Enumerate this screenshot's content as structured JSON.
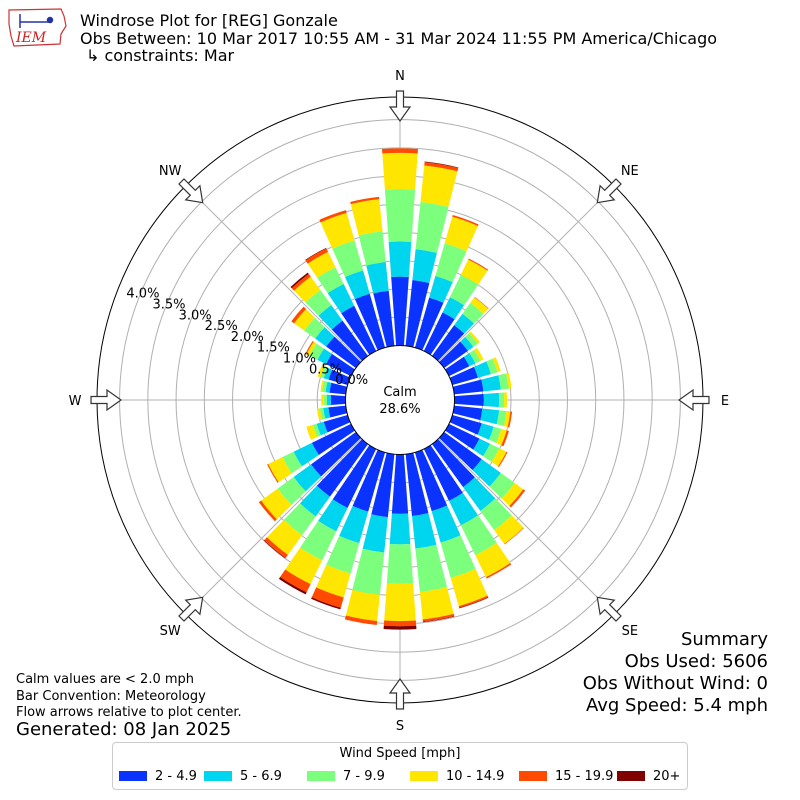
{
  "header": {
    "logo_text": "IEM",
    "title": "Windrose Plot for [REG] Gonzale",
    "subtitle": "Obs Between: 10 Mar 2017 10:55 AM - 31 Mar 2024 11:55 PM America/Chicago",
    "constraints": "↳ constraints: Mar"
  },
  "notes": {
    "calm": "Calm values are < 2.0 mph",
    "convention": "Bar Convention: Meteorology",
    "flow": "Flow arrows relative to plot center.",
    "generated": "Generated: 08 Jan 2025"
  },
  "summary": {
    "title": "Summary",
    "obs_used": "Obs Used: 5606",
    "obs_without_wind": "Obs Without Wind: 0",
    "avg_speed": "Avg Speed: 5.4 mph"
  },
  "legend": {
    "title": "Wind Speed [mph]",
    "items": [
      {
        "label": "2 - 4.9",
        "color": "#0b33ff"
      },
      {
        "label": "5 - 6.9",
        "color": "#00d5f0"
      },
      {
        "label": "7 - 9.9",
        "color": "#7cff7c"
      },
      {
        "label": "10 - 14.9",
        "color": "#ffe600"
      },
      {
        "label": "15 - 19.9",
        "color": "#ff4a00"
      },
      {
        "label": "20+",
        "color": "#800000"
      }
    ]
  },
  "chart_data": {
    "type": "windrose",
    "calm_label": "Calm",
    "calm_value": "28.6%",
    "radial_tick_labels": [
      "0.0%",
      "0.5%",
      "1.0%",
      "1.5%",
      "2.0%",
      "2.5%",
      "3.0%",
      "3.5%",
      "4.0%"
    ],
    "radial_max_percent": 4.4,
    "calm_hole_fraction": 0.18,
    "directions": [
      {
        "label": "N",
        "angle": 0
      },
      {
        "label": "NE",
        "angle": 45
      },
      {
        "label": "E",
        "angle": 90
      },
      {
        "label": "SE",
        "angle": 135
      },
      {
        "label": "S",
        "angle": 180
      },
      {
        "label": "SW",
        "angle": 225
      },
      {
        "label": "W",
        "angle": 270
      },
      {
        "label": "NW",
        "angle": 315
      }
    ],
    "speed_bins": [
      "2 - 4.9",
      "5 - 6.9",
      "7 - 9.9",
      "10 - 14.9",
      "15 - 19.9",
      "20+"
    ],
    "sectors": [
      {
        "direction": 0,
        "values": [
          1.22,
          0.62,
          0.93,
          0.64,
          0.08,
          0.0
        ]
      },
      {
        "direction": 10,
        "values": [
          1.17,
          0.55,
          0.84,
          0.65,
          0.06,
          0.01
        ]
      },
      {
        "direction": 20,
        "values": [
          0.92,
          0.4,
          0.6,
          0.49,
          0.03,
          0.0
        ]
      },
      {
        "direction": 30,
        "values": [
          0.76,
          0.3,
          0.44,
          0.3,
          0.02,
          0.0
        ]
      },
      {
        "direction": 40,
        "values": [
          0.67,
          0.25,
          0.24,
          0.12,
          0.01,
          0.0
        ]
      },
      {
        "direction": 50,
        "values": [
          0.52,
          0.12,
          0.1,
          0.04,
          0.0,
          0.0
        ]
      },
      {
        "direction": 60,
        "values": [
          0.4,
          0.12,
          0.1,
          0.06,
          0.0,
          0.0
        ]
      },
      {
        "direction": 70,
        "values": [
          0.47,
          0.24,
          0.12,
          0.06,
          0.0,
          0.0
        ]
      },
      {
        "direction": 80,
        "values": [
          0.52,
          0.31,
          0.14,
          0.05,
          0.0,
          0.0
        ]
      },
      {
        "direction": 90,
        "values": [
          0.52,
          0.27,
          0.09,
          0.05,
          0.0,
          0.0
        ]
      },
      {
        "direction": 100,
        "values": [
          0.5,
          0.3,
          0.13,
          0.07,
          0.03,
          0.0
        ]
      },
      {
        "direction": 110,
        "values": [
          0.54,
          0.22,
          0.14,
          0.1,
          0.04,
          0.0
        ]
      },
      {
        "direction": 120,
        "values": [
          0.6,
          0.21,
          0.18,
          0.14,
          0.02,
          0.0
        ]
      },
      {
        "direction": 130,
        "values": [
          0.82,
          0.42,
          0.3,
          0.19,
          0.04,
          0.0
        ]
      },
      {
        "direction": 140,
        "values": [
          0.94,
          0.52,
          0.42,
          0.3,
          0.01,
          0.0
        ]
      },
      {
        "direction": 150,
        "values": [
          1.02,
          0.48,
          0.59,
          0.43,
          0.03,
          0.0
        ]
      },
      {
        "direction": 160,
        "values": [
          1.08,
          0.58,
          0.65,
          0.52,
          0.03,
          0.01
        ]
      },
      {
        "direction": 170,
        "values": [
          1.1,
          0.58,
          0.77,
          0.49,
          0.04,
          0.01
        ]
      },
      {
        "direction": 180,
        "values": [
          1.05,
          0.54,
          0.7,
          0.66,
          0.09,
          0.06
        ]
      },
      {
        "direction": 190,
        "values": [
          1.12,
          0.63,
          0.75,
          0.47,
          0.07,
          0.0
        ]
      },
      {
        "direction": 200,
        "values": [
          1.09,
          0.58,
          0.56,
          0.44,
          0.19,
          0.03
        ]
      },
      {
        "direction": 210,
        "values": [
          1.16,
          0.46,
          0.57,
          0.47,
          0.16,
          0.04
        ]
      },
      {
        "direction": 220,
        "values": [
          1.15,
          0.43,
          0.41,
          0.43,
          0.07,
          0.01
        ]
      },
      {
        "direction": 230,
        "values": [
          0.98,
          0.38,
          0.35,
          0.36,
          0.05,
          0.0
        ]
      },
      {
        "direction": 240,
        "values": [
          0.77,
          0.36,
          0.22,
          0.28,
          0.02,
          0.0
        ]
      },
      {
        "direction": 250,
        "values": [
          0.44,
          0.13,
          0.07,
          0.12,
          0.0,
          0.0
        ]
      },
      {
        "direction": 260,
        "values": [
          0.31,
          0.09,
          0.06,
          0.05,
          0.0,
          0.0
        ]
      },
      {
        "direction": 270,
        "values": [
          0.26,
          0.07,
          0.05,
          0.05,
          0.0,
          0.0
        ]
      },
      {
        "direction": 280,
        "values": [
          0.29,
          0.07,
          0.06,
          0.03,
          0.0,
          0.0
        ]
      },
      {
        "direction": 290,
        "values": [
          0.35,
          0.09,
          0.06,
          0.05,
          0.0,
          0.0
        ]
      },
      {
        "direction": 300,
        "values": [
          0.49,
          0.17,
          0.16,
          0.06,
          0.02,
          0.0
        ]
      },
      {
        "direction": 310,
        "values": [
          0.65,
          0.24,
          0.24,
          0.22,
          0.06,
          0.0
        ]
      },
      {
        "direction": 320,
        "values": [
          0.77,
          0.34,
          0.33,
          0.29,
          0.06,
          0.03
        ]
      },
      {
        "direction": 330,
        "values": [
          0.89,
          0.43,
          0.33,
          0.3,
          0.07,
          0.01
        ]
      },
      {
        "direction": 340,
        "values": [
          0.99,
          0.43,
          0.55,
          0.51,
          0.05,
          0.0
        ]
      },
      {
        "direction": 350,
        "values": [
          0.98,
          0.51,
          0.55,
          0.57,
          0.04,
          0.0
        ]
      }
    ]
  }
}
